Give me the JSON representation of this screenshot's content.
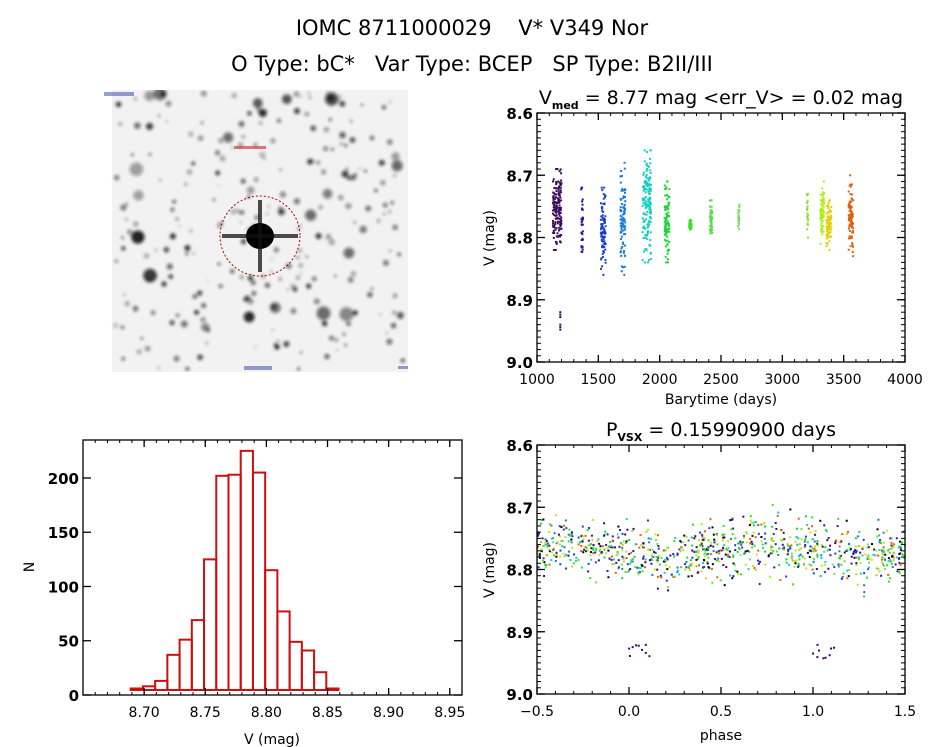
{
  "header": {
    "main_title": "IOMC 8711000029    V* V349 Nor",
    "sub_title": "O Type: bC*   Var Type: BCEP   SP Type: B2II/III"
  },
  "image_panel": {
    "description": "grayscale sky finder chart with red dashed circle around target star",
    "marker_color": "#cc0000"
  },
  "chart_data": [
    {
      "id": "lightcurve",
      "type": "scatter",
      "title_main": "V",
      "title_sub": "med",
      "title_rest": " = 8.77 mag <err_V> = 0.02 mag",
      "xlabel": "Barytime (days)",
      "ylabel": "V (mag)",
      "xlim": [
        1000,
        4000
      ],
      "ylim": [
        8.6,
        9.0
      ],
      "y_inverted": true,
      "xticks": [
        "1000",
        "1500",
        "2000",
        "2500",
        "3000",
        "3500",
        "4000"
      ],
      "yticks": [
        "8.6",
        "8.7",
        "8.8",
        "8.9",
        "9.0"
      ],
      "series": [
        {
          "name": "season-1",
          "color": "#3a0a5a",
          "x": [
            1130,
            1200
          ],
          "y_range": [
            8.69,
            8.82
          ],
          "outliers": [
            8.92,
            8.94
          ]
        },
        {
          "name": "season-2",
          "color": "#3b0fa0",
          "x": [
            1360,
            1375
          ],
          "y_range": [
            8.72,
            8.85
          ]
        },
        {
          "name": "season-3",
          "color": "#1a3fc8",
          "x": [
            1520,
            1560
          ],
          "y_range": [
            8.72,
            8.86
          ]
        },
        {
          "name": "season-4",
          "color": "#1a7ad8",
          "x": [
            1680,
            1720
          ],
          "y_range": [
            8.68,
            8.86
          ]
        },
        {
          "name": "season-5",
          "color": "#12d0c0",
          "x": [
            1860,
            1930
          ],
          "y_range": [
            8.66,
            8.84
          ]
        },
        {
          "name": "season-6",
          "color": "#18d830",
          "x": [
            2040,
            2080
          ],
          "y_range": [
            8.71,
            8.84
          ]
        },
        {
          "name": "season-7",
          "color": "#40e020",
          "x": [
            2240,
            2260
          ],
          "y_range": [
            8.77,
            8.79
          ]
        },
        {
          "name": "season-8",
          "color": "#50e040",
          "x": [
            2410,
            2430
          ],
          "y_range": [
            8.74,
            8.8
          ]
        },
        {
          "name": "season-9",
          "color": "#70e050",
          "x": [
            2640,
            2650
          ],
          "y_range": [
            8.73,
            8.8
          ]
        },
        {
          "name": "season-10",
          "color": "#90e030",
          "x": [
            3200,
            3210
          ],
          "y_range": [
            8.73,
            8.8
          ]
        },
        {
          "name": "season-11",
          "color": "#b0f010",
          "x": [
            3310,
            3340
          ],
          "y_range": [
            8.71,
            8.81
          ]
        },
        {
          "name": "season-12",
          "color": "#e0d010",
          "x": [
            3360,
            3400
          ],
          "y_range": [
            8.74,
            8.82
          ]
        },
        {
          "name": "season-13",
          "color": "#e06010",
          "x": [
            3540,
            3580
          ],
          "y_range": [
            8.7,
            8.83
          ]
        }
      ]
    },
    {
      "id": "histogram",
      "type": "bar",
      "xlabel": "V (mag)",
      "ylabel": "N",
      "xlim": [
        8.65,
        8.96
      ],
      "ylim": [
        0,
        235
      ],
      "xticks": [
        "8.70",
        "8.75",
        "8.80",
        "8.85",
        "8.90",
        "8.95"
      ],
      "yticks": [
        "0",
        "50",
        "100",
        "150",
        "200"
      ],
      "bin_start": 8.659,
      "bin_width": 0.01,
      "values": [
        2,
        1,
        1,
        6,
        8,
        13,
        37,
        51,
        69,
        125,
        202,
        203,
        225,
        205,
        115,
        77,
        49,
        41,
        21,
        6,
        4,
        2,
        0,
        0,
        0,
        0,
        1,
        1,
        0,
        2
      ],
      "color": "#cc1010"
    },
    {
      "id": "phased",
      "type": "scatter",
      "title_main": "P",
      "title_sub": "VSX",
      "title_rest": " = 0.15990900 days",
      "xlabel": "phase",
      "ylabel": "V (mag)",
      "xlim": [
        -0.5,
        1.5
      ],
      "ylim": [
        8.6,
        9.0
      ],
      "y_inverted": true,
      "xticks": [
        "−0.5",
        "0.0",
        "0.5",
        "1.0",
        "1.5"
      ],
      "yticks": [
        "8.6",
        "8.7",
        "8.8",
        "8.9",
        "9.0"
      ],
      "period_days": 0.159909,
      "band_center": 8.77,
      "band_halfwidth": 0.05,
      "outlier_clusters": [
        {
          "phase": [
            0.0,
            0.12
          ],
          "v": [
            8.92,
            8.945
          ],
          "color": "#3a0a5a"
        },
        {
          "phase": [
            1.0,
            1.12
          ],
          "v": [
            8.92,
            8.945
          ],
          "color": "#3a0a5a"
        }
      ],
      "colors": [
        "#3a0a5a",
        "#3b0fa0",
        "#1a3fc8",
        "#1a7ad8",
        "#12d0c0",
        "#18d830",
        "#40e020",
        "#70e050",
        "#b0f010",
        "#e0d010",
        "#e06010",
        "#000000"
      ]
    }
  ]
}
